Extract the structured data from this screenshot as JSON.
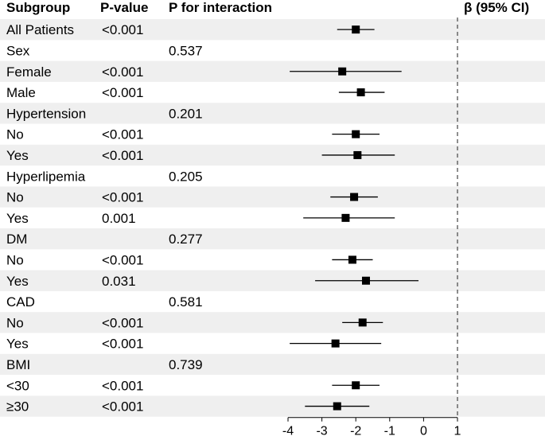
{
  "chart_data": {
    "type": "forest",
    "columns": {
      "subgroup": "Subgroup",
      "p_value": "P-value",
      "p_interaction": "P for interaction",
      "effect": "β (95% CI)"
    },
    "reference_line": 1,
    "xlim": [
      -4,
      1
    ],
    "xticks": [
      "-4",
      "-3",
      "-2",
      "-1",
      "0",
      "1"
    ],
    "rows": [
      {
        "label": "All Patients",
        "p": "<0.001",
        "pint": "",
        "est": -2.0,
        "lo": -2.55,
        "hi": -1.45
      },
      {
        "label": "Sex",
        "p": "",
        "pint": "0.537"
      },
      {
        "label": "Female",
        "p": "<0.001",
        "pint": "",
        "est": -2.4,
        "lo": -3.95,
        "hi": -0.65
      },
      {
        "label": "Male",
        "p": "<0.001",
        "pint": "",
        "est": -1.85,
        "lo": -2.5,
        "hi": -1.15
      },
      {
        "label": "Hypertension",
        "p": "",
        "pint": "0.201"
      },
      {
        "label": "No",
        "p": "<0.001",
        "pint": "",
        "est": -2.0,
        "lo": -2.7,
        "hi": -1.3
      },
      {
        "label": "Yes",
        "p": "<0.001",
        "pint": "",
        "est": -1.95,
        "lo": -3.0,
        "hi": -0.85
      },
      {
        "label": "Hyperlipemia",
        "p": "",
        "pint": "0.205"
      },
      {
        "label": "No",
        "p": "<0.001",
        "pint": "",
        "est": -2.05,
        "lo": -2.75,
        "hi": -1.35
      },
      {
        "label": "Yes",
        "p": "0.001",
        "pint": "",
        "est": -2.3,
        "lo": -3.55,
        "hi": -0.85
      },
      {
        "label": "DM",
        "p": "",
        "pint": "0.277"
      },
      {
        "label": "No",
        "p": "<0.001",
        "pint": "",
        "est": -2.1,
        "lo": -2.7,
        "hi": -1.5
      },
      {
        "label": "Yes",
        "p": "0.031",
        "pint": "",
        "est": -1.7,
        "lo": -3.2,
        "hi": -0.15
      },
      {
        "label": "CAD",
        "p": "",
        "pint": "0.581"
      },
      {
        "label": "No",
        "p": "<0.001",
        "pint": "",
        "est": -1.8,
        "lo": -2.4,
        "hi": -1.2
      },
      {
        "label": "Yes",
        "p": "<0.001",
        "pint": "",
        "est": -2.6,
        "lo": -3.95,
        "hi": -1.25
      },
      {
        "label": "BMI",
        "p": "",
        "pint": "0.739"
      },
      {
        "label": "<30",
        "p": "<0.001",
        "pint": "",
        "est": -2.0,
        "lo": -2.7,
        "hi": -1.3
      },
      {
        "label": "≥30",
        "p": "<0.001",
        "pint": "",
        "est": -2.55,
        "lo": -3.5,
        "hi": -1.6
      }
    ]
  }
}
